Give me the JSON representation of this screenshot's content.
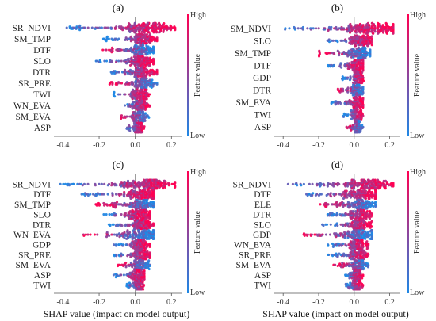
{
  "colors": {
    "low": "#1e88e5",
    "high": "#ff0052",
    "axis": "#555555",
    "zero_line": "#888888"
  },
  "chart_data": [
    {
      "type": "scatter",
      "subtype": "shap-beeswarm",
      "panel": "(a)",
      "features": [
        "SR_NDVI",
        "SM_TMP",
        "DTF",
        "SLO",
        "DTR",
        "SR_PRE",
        "TWI",
        "WN_EVA",
        "SM_EVA",
        "ASP"
      ],
      "ranges": [
        [
          -0.42,
          0.22
        ],
        [
          -0.18,
          0.12
        ],
        [
          -0.2,
          0.1
        ],
        [
          -0.22,
          0.1
        ],
        [
          -0.15,
          0.12
        ],
        [
          -0.15,
          0.12
        ],
        [
          -0.12,
          0.08
        ],
        [
          -0.07,
          0.08
        ],
        [
          -0.08,
          0.08
        ],
        [
          -0.06,
          0.05
        ]
      ],
      "xticks": [
        "-0.4",
        "-0.2",
        "0.0",
        "0.2"
      ],
      "xlim": [
        -0.45,
        0.26
      ],
      "xlabel": "",
      "colorbar": {
        "title": "Feature value",
        "high": "High",
        "low": "Low"
      }
    },
    {
      "type": "scatter",
      "subtype": "shap-beeswarm",
      "panel": "(b)",
      "features": [
        "SM_NDVI",
        "SLO",
        "SM_TMP",
        "DTF",
        "GDP",
        "DTR",
        "SM_EVA",
        "TWI",
        "ASP"
      ],
      "ranges": [
        [
          -0.42,
          0.22
        ],
        [
          -0.15,
          0.1
        ],
        [
          -0.2,
          0.09
        ],
        [
          -0.18,
          0.05
        ],
        [
          -0.07,
          0.06
        ],
        [
          -0.1,
          0.05
        ],
        [
          -0.13,
          0.05
        ],
        [
          -0.06,
          0.05
        ],
        [
          -0.05,
          0.05
        ]
      ],
      "xticks": [
        "-0.4",
        "-0.2",
        "0.0",
        "0.2"
      ],
      "xlim": [
        -0.45,
        0.26
      ],
      "xlabel": "",
      "colorbar": {
        "title": "Feature value",
        "high": "High",
        "low": "Low"
      }
    },
    {
      "type": "scatter",
      "subtype": "shap-beeswarm",
      "panel": "(c)",
      "features": [
        "SR_NDVI",
        "DTF",
        "SM_TMP",
        "SLO",
        "DTR",
        "WN_EVA",
        "GDP",
        "SR_PRE",
        "SM_EVA",
        "ASP",
        "TWI"
      ],
      "ranges": [
        [
          -0.42,
          0.22
        ],
        [
          -0.3,
          0.1
        ],
        [
          -0.22,
          0.1
        ],
        [
          -0.22,
          0.08
        ],
        [
          -0.15,
          0.1
        ],
        [
          -0.3,
          0.1
        ],
        [
          -0.12,
          0.08
        ],
        [
          -0.12,
          0.08
        ],
        [
          -0.1,
          0.08
        ],
        [
          -0.12,
          0.05
        ],
        [
          -0.05,
          0.05
        ]
      ],
      "xticks": [
        "-0.4",
        "-0.2",
        "0.0",
        "0.2"
      ],
      "xlim": [
        -0.45,
        0.26
      ],
      "xlabel": "SHAP value (impact on model output)",
      "colorbar": {
        "title": "Feature value",
        "high": "High",
        "low": "Low"
      }
    },
    {
      "type": "scatter",
      "subtype": "shap-beeswarm",
      "panel": "(d)",
      "features": [
        "SR_NDVI",
        "DTF",
        "ELE",
        "DTR",
        "SLO",
        "GDP",
        "WN_EVA",
        "SR_PRE",
        "SM_EVA",
        "ASP",
        "TWI"
      ],
      "ranges": [
        [
          -0.42,
          0.22
        ],
        [
          -0.3,
          0.12
        ],
        [
          -0.2,
          0.12
        ],
        [
          -0.15,
          0.1
        ],
        [
          -0.18,
          0.1
        ],
        [
          -0.3,
          0.1
        ],
        [
          -0.15,
          0.08
        ],
        [
          -0.15,
          0.08
        ],
        [
          -0.12,
          0.08
        ],
        [
          -0.06,
          0.05
        ],
        [
          -0.05,
          0.05
        ]
      ],
      "xticks": [
        "-0.4",
        "-0.2",
        "0.0",
        "0.2"
      ],
      "xlim": [
        -0.45,
        0.26
      ],
      "xlabel": "SHAP value (impact on model output)",
      "colorbar": {
        "title": "Feature value",
        "high": "High",
        "low": "Low"
      }
    }
  ]
}
